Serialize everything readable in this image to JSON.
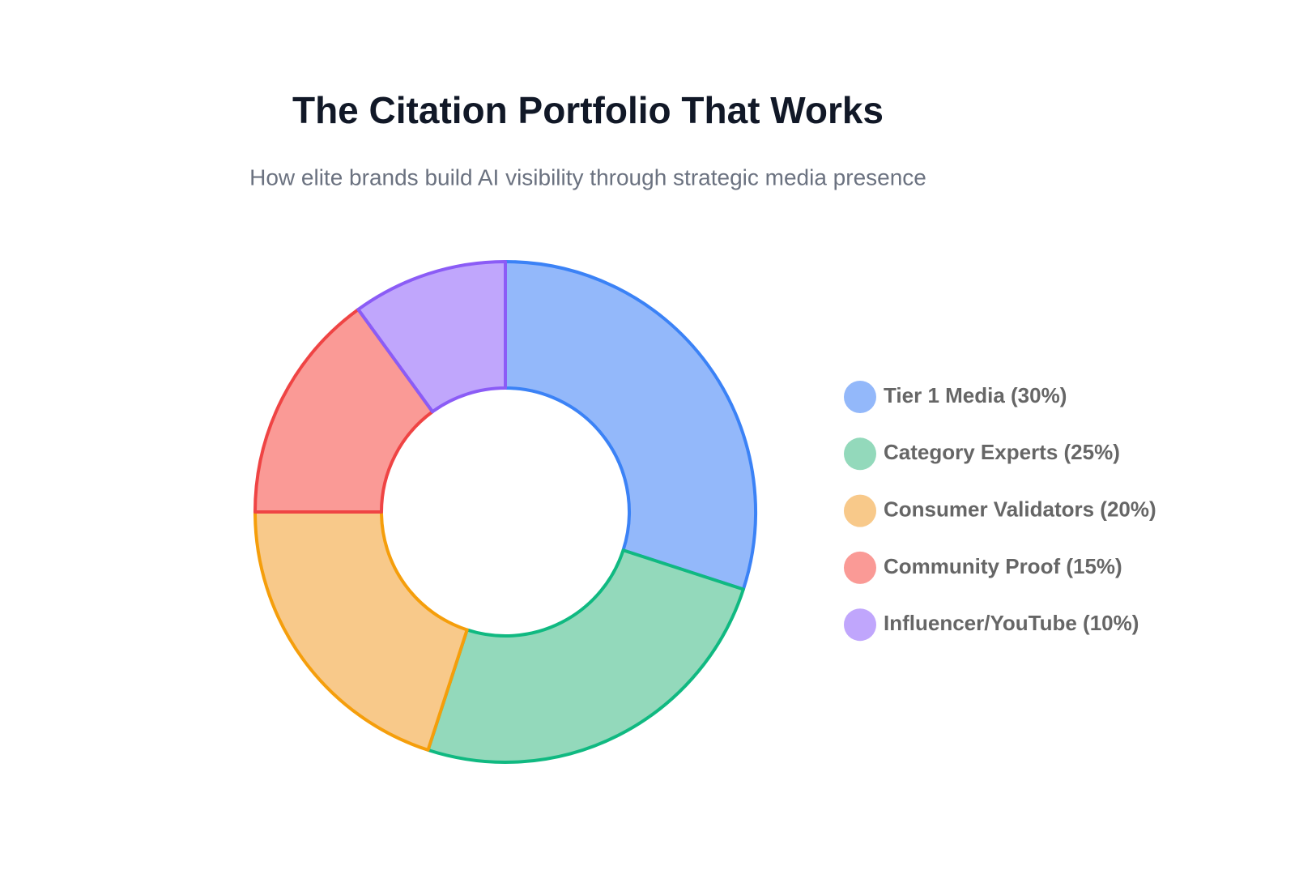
{
  "chart_data": {
    "type": "donut",
    "title": "The Citation Portfolio That Works",
    "subtitle": "How elite brands build AI visibility through strategic media presence",
    "categories": [
      "Tier 1 Media (30%)",
      "Category Experts (25%)",
      "Consumer Validators (20%)",
      "Community Proof (15%)",
      "Influencer/YouTube (10%)"
    ],
    "values": [
      30,
      25,
      20,
      15,
      10
    ],
    "colors": [
      "#93b8fa",
      "#93d9bb",
      "#f8c98a",
      "#fa9a96",
      "#c0a6fc"
    ],
    "border_colors": [
      "#3b82f6",
      "#10b981",
      "#f59e0b",
      "#ef4444",
      "#8b5cf6"
    ],
    "legend": "right"
  }
}
